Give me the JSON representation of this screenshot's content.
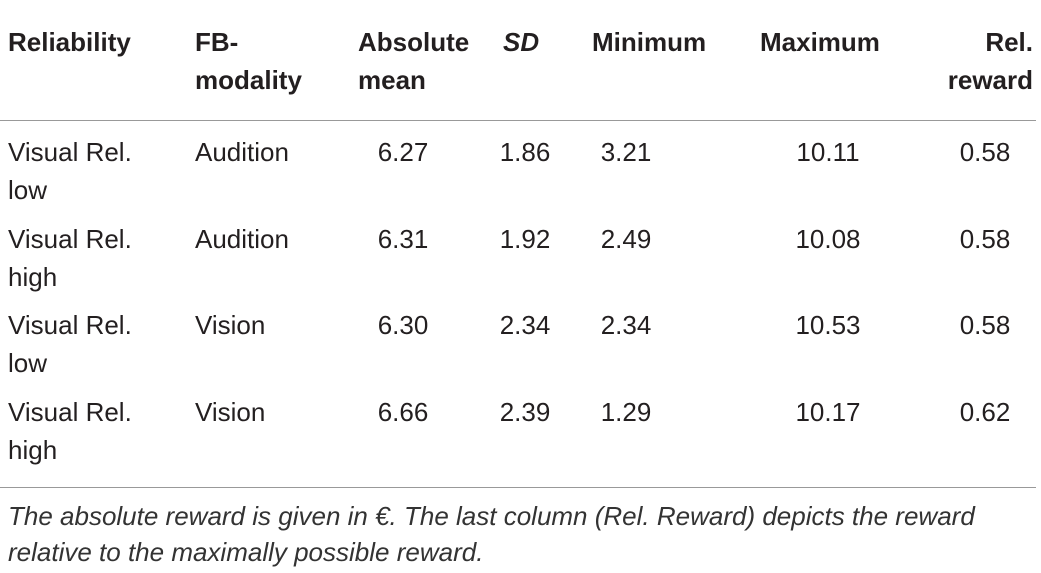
{
  "table": {
    "header": [
      "Reliability",
      "FB-modality",
      "Absolute mean",
      "SD",
      "Minimum",
      "Maximum",
      "Rel. reward"
    ],
    "rows": [
      [
        "Visual Rel. low",
        "Audition",
        "6.27",
        "1.86",
        "3.21",
        "10.11",
        "0.58"
      ],
      [
        "Visual Rel. high",
        "Audition",
        "6.31",
        "1.92",
        "2.49",
        "10.08",
        "0.58"
      ],
      [
        "Visual Rel. low",
        "Vision",
        "6.30",
        "2.34",
        "2.34",
        "10.53",
        "0.58"
      ],
      [
        "Visual Rel. high",
        "Vision",
        "6.66",
        "2.39",
        "1.29",
        "10.17",
        "0.62"
      ]
    ],
    "footnote": "The absolute reward is given in €. The last column (Rel. Reward) depicts the reward relative to the maximally possible reward."
  }
}
